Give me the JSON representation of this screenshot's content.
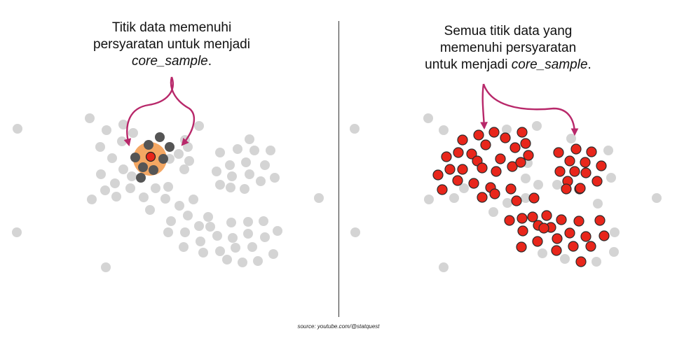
{
  "left_panel": {
    "caption_line1": "Titik data memenuhi",
    "caption_line2": "persyaratan untuk menjadi",
    "caption_term": "core_sample",
    "caption_period": "."
  },
  "right_panel": {
    "caption_line1": "Semua titik data yang",
    "caption_line2": "memenuhi persyaratan",
    "caption_line3_prefix": "untuk menjadi ",
    "caption_term": "core_sample",
    "caption_period": "."
  },
  "source": "source: youtube.com/@statquest",
  "colors": {
    "point_gray": "#d4d4d4",
    "neighbor_dark": "#555555",
    "core_red": "#e8261b",
    "highlight_orange": "#f4a763",
    "arrow_magenta": "#b8286a"
  }
}
